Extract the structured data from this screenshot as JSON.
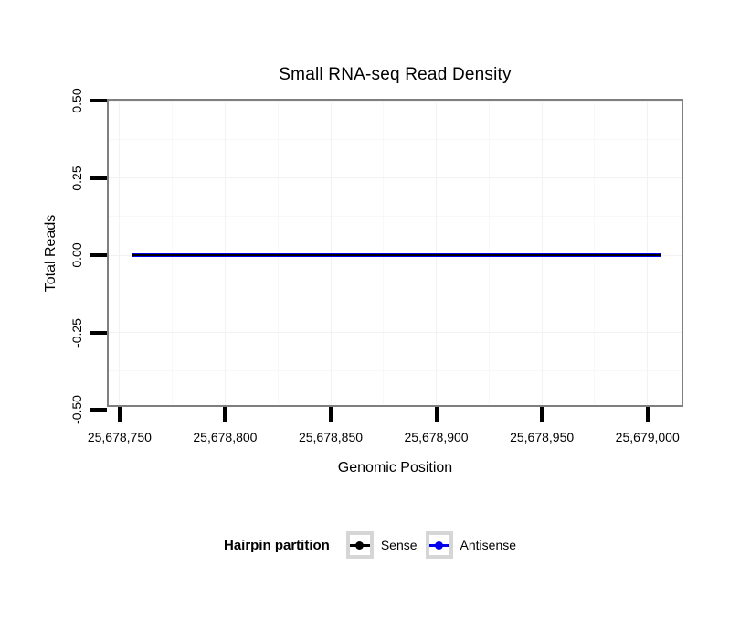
{
  "title": "Small RNA-seq Read Density",
  "axes": {
    "x": {
      "label": "Genomic Position"
    },
    "y": {
      "label": "Total Reads"
    }
  },
  "legend": {
    "title": "Hairpin partition",
    "entries": [
      {
        "label": "Sense",
        "color": "#000000"
      },
      {
        "label": "Antisense",
        "color": "#0000EE"
      }
    ]
  },
  "colors": {
    "panel_border": "#7F7F7F",
    "tick": "#000000",
    "grid_major": "#F2F2F2",
    "grid_minor": "#F8F8F8",
    "legend_key_border": "#D6D6D6"
  },
  "chart_data": {
    "type": "line",
    "title": "Small RNA-seq Read Density",
    "xlabel": "Genomic Position",
    "ylabel": "Total Reads",
    "xlim": [
      25678744,
      25679017
    ],
    "ylim": [
      -0.5,
      0.5
    ],
    "x_ticks": [
      25678750,
      25678800,
      25678850,
      25678900,
      25678950,
      25679000
    ],
    "x_tick_labels": [
      "25,678,750",
      "25,678,800",
      "25,678,850",
      "25,678,900",
      "25,678,950",
      "25,679,000"
    ],
    "x_minor_ticks": [
      25678775,
      25678825,
      25678875,
      25678925,
      25678975
    ],
    "y_ticks": [
      0.5,
      0.25,
      0,
      -0.25,
      -0.5
    ],
    "y_tick_labels": [
      "0.50",
      "0.25",
      "0.00",
      "-0.25",
      "-0.50"
    ],
    "y_minor_ticks": [
      0.375,
      0.125,
      -0.125,
      -0.375
    ],
    "grid": true,
    "legend_position": "bottom",
    "legend_title": "Hairpin partition",
    "series": [
      {
        "name": "Antisense",
        "color": "#0000EE",
        "x_start": 25678756,
        "x_end": 25679006,
        "y_constant": 0
      },
      {
        "name": "Sense",
        "color": "#000000",
        "x_start": 25678756,
        "x_end": 25679006,
        "y_constant": 0
      }
    ]
  }
}
